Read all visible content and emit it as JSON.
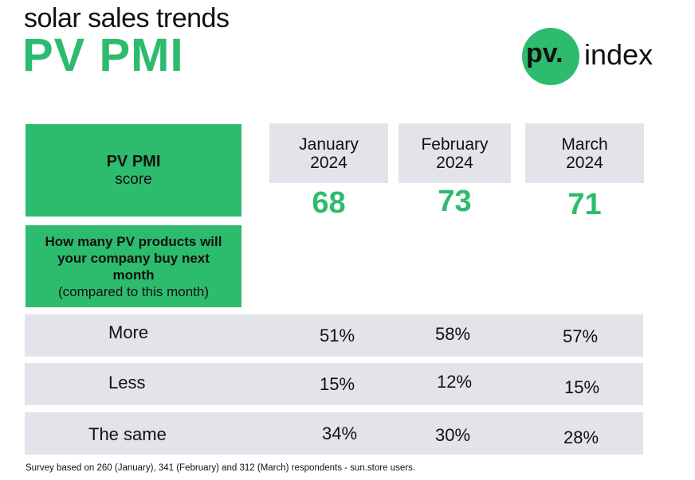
{
  "header": {
    "subtitle": "solar sales trends",
    "title": "PV PMI"
  },
  "logo": {
    "pv": "pv.",
    "index": "index"
  },
  "score_label": {
    "bold": "PV PMI",
    "sub": "score"
  },
  "question": {
    "bold": "How many PV products will your company buy next month",
    "sub": "(compared to this month)"
  },
  "months": [
    {
      "label": "January\n2024",
      "score": "68"
    },
    {
      "label": "February\n2024",
      "score": "73"
    },
    {
      "label": "March\n2024",
      "score": "71"
    }
  ],
  "rows": [
    {
      "label": "More",
      "values": [
        "51%",
        "58%",
        "57%"
      ]
    },
    {
      "label": "Less",
      "values": [
        "15%",
        "12%",
        "15%"
      ]
    },
    {
      "label": "The same",
      "values": [
        "34%",
        "30%",
        "28%"
      ]
    }
  ],
  "footer": "Survey based on 260 (January), 341 (February) and 312 (March) respondents - sun.store users.",
  "colors": {
    "accent": "#2dbb6e",
    "cell": "#e3e3ea"
  }
}
